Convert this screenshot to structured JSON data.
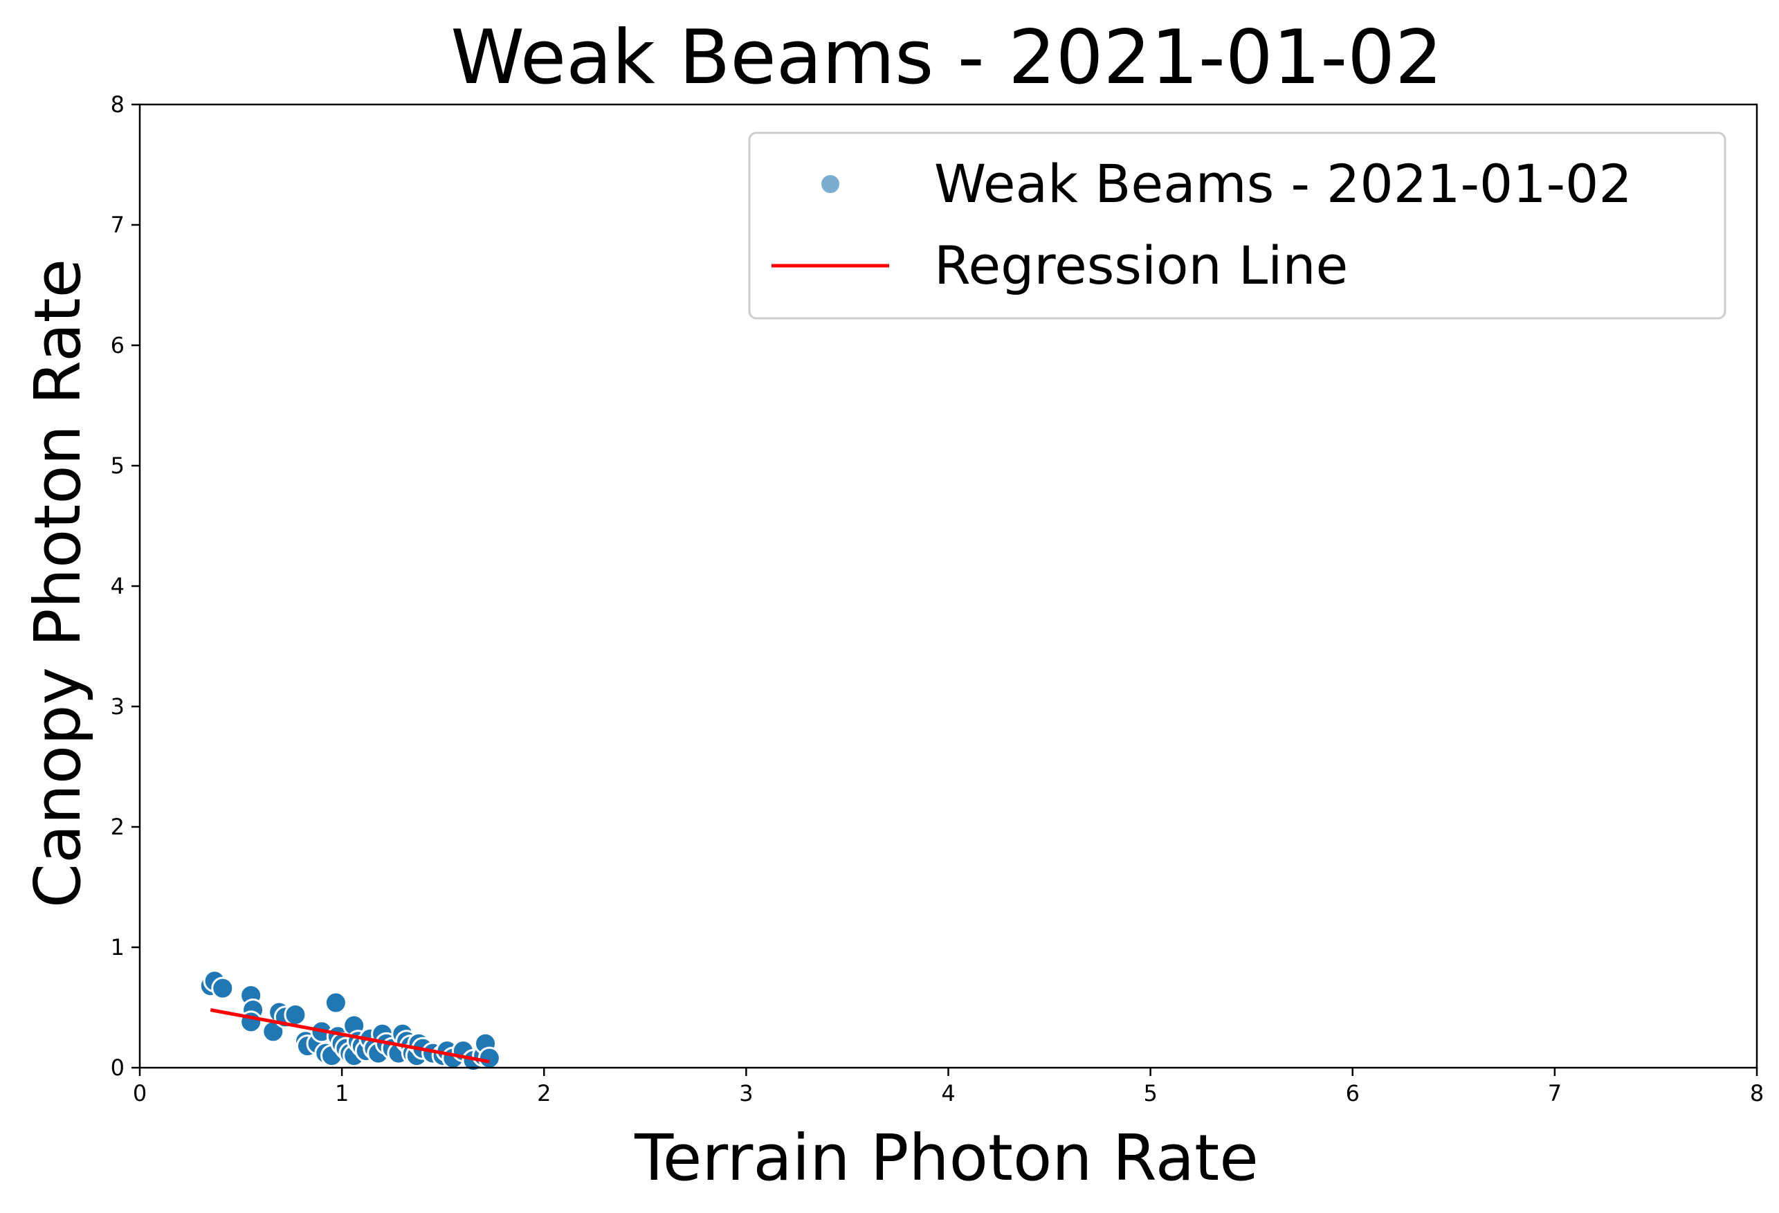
{
  "chart_data": {
    "type": "scatter",
    "title": "Weak Beams - 2021-01-02",
    "xlabel": "Terrain Photon Rate",
    "ylabel": "Canopy Photon Rate",
    "xlim": [
      0,
      8
    ],
    "ylim": [
      0,
      8
    ],
    "xticks": [
      "0",
      "1",
      "2",
      "3",
      "4",
      "5",
      "6",
      "7",
      "8"
    ],
    "yticks": [
      "0",
      "1",
      "2",
      "3",
      "4",
      "5",
      "6",
      "7",
      "8"
    ],
    "grid": false,
    "legend_position": "top-right",
    "colors": {
      "points": "#1f77b4",
      "regression": "#ff0000"
    },
    "series": [
      {
        "name": "Weak Beams - 2021-01-02",
        "kind": "scatter",
        "points": [
          [
            0.35,
            0.68
          ],
          [
            0.37,
            0.72
          ],
          [
            0.41,
            0.66
          ],
          [
            0.55,
            0.6
          ],
          [
            0.56,
            0.48
          ],
          [
            0.55,
            0.38
          ],
          [
            0.66,
            0.3
          ],
          [
            0.69,
            0.46
          ],
          [
            0.72,
            0.42
          ],
          [
            0.77,
            0.44
          ],
          [
            0.82,
            0.22
          ],
          [
            0.83,
            0.18
          ],
          [
            0.88,
            0.2
          ],
          [
            0.9,
            0.3
          ],
          [
            0.92,
            0.12
          ],
          [
            0.95,
            0.1
          ],
          [
            0.97,
            0.54
          ],
          [
            0.98,
            0.26
          ],
          [
            1.0,
            0.2
          ],
          [
            1.02,
            0.16
          ],
          [
            1.04,
            0.12
          ],
          [
            1.06,
            0.1
          ],
          [
            1.06,
            0.35
          ],
          [
            1.08,
            0.22
          ],
          [
            1.1,
            0.18
          ],
          [
            1.12,
            0.14
          ],
          [
            1.14,
            0.24
          ],
          [
            1.16,
            0.16
          ],
          [
            1.18,
            0.12
          ],
          [
            1.2,
            0.28
          ],
          [
            1.22,
            0.2
          ],
          [
            1.25,
            0.16
          ],
          [
            1.28,
            0.12
          ],
          [
            1.3,
            0.28
          ],
          [
            1.32,
            0.22
          ],
          [
            1.34,
            0.18
          ],
          [
            1.35,
            0.12
          ],
          [
            1.37,
            0.1
          ],
          [
            1.38,
            0.2
          ],
          [
            1.4,
            0.16
          ],
          [
            1.45,
            0.12
          ],
          [
            1.5,
            0.1
          ],
          [
            1.52,
            0.14
          ],
          [
            1.55,
            0.08
          ],
          [
            1.6,
            0.14
          ],
          [
            1.65,
            0.06
          ],
          [
            1.7,
            0.1
          ],
          [
            1.71,
            0.2
          ],
          [
            1.73,
            0.08
          ]
        ]
      },
      {
        "name": "Regression Line",
        "kind": "line",
        "points": [
          [
            0.35,
            0.48
          ],
          [
            1.73,
            0.05
          ]
        ]
      }
    ]
  }
}
